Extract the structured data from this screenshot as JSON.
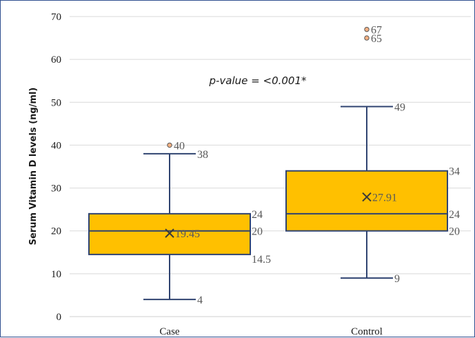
{
  "chart_data": {
    "type": "box",
    "ylabel": "Serum Vitamin D levels (ng/ml)",
    "xlabel": "",
    "ylim": [
      0,
      70
    ],
    "yticks": [
      0,
      10,
      20,
      30,
      40,
      50,
      60,
      70
    ],
    "grid": true,
    "annotation": "p-value = <0.001*",
    "categories": [
      "Case",
      "Control"
    ],
    "box_color": "#ffc000",
    "line_color": "#2f4370",
    "outlier_color": "#f4b183",
    "label_color": "#595959",
    "boxes": [
      {
        "category": "Case",
        "min": 4,
        "q1": 14.5,
        "median": 20,
        "q3": 24,
        "max": 38,
        "mean": 19.45,
        "outliers": [
          40
        ],
        "labels": {
          "min": "4",
          "q1": "14.5",
          "median": "20",
          "q3": "24",
          "max": "38",
          "mean": "19.45",
          "outliers": [
            "40"
          ]
        }
      },
      {
        "category": "Control",
        "min": 9,
        "q1": 20,
        "median": 24,
        "q3": 34,
        "max": 49,
        "mean": 27.91,
        "outliers": [
          67,
          65
        ],
        "labels": {
          "min": "9",
          "q1": "20",
          "median": "24",
          "q3": "34",
          "max": "49",
          "mean": "27.91",
          "outliers": [
            "67",
            "65"
          ]
        }
      }
    ]
  }
}
